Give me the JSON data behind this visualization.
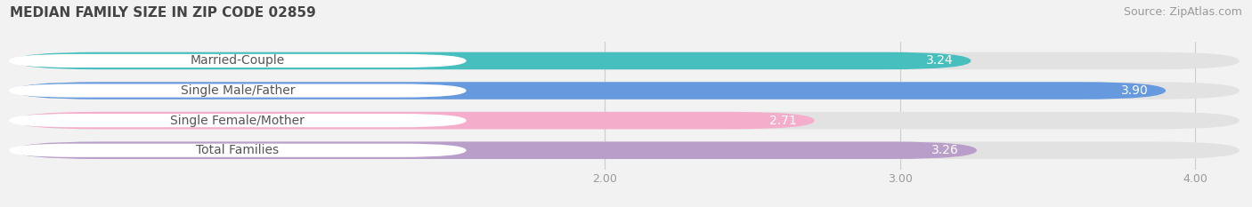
{
  "title": "MEDIAN FAMILY SIZE IN ZIP CODE 02859",
  "source": "Source: ZipAtlas.com",
  "categories": [
    "Married-Couple",
    "Single Male/Father",
    "Single Female/Mother",
    "Total Families"
  ],
  "values": [
    3.24,
    3.9,
    2.71,
    3.26
  ],
  "bar_colors": [
    "#47BFBF",
    "#6699DD",
    "#F4AECB",
    "#B89EC8"
  ],
  "background_color": "#f2f2f2",
  "bar_bg_color": "#e2e2e2",
  "xlim_data": [
    2.0,
    4.0
  ],
  "xticks": [
    2.0,
    3.0,
    4.0
  ],
  "label_color": "#555555",
  "value_color_inside": "#ffffff",
  "value_color_outside": "#666666",
  "title_fontsize": 11,
  "source_fontsize": 9,
  "label_fontsize": 10,
  "value_fontsize": 10,
  "tick_fontsize": 9,
  "bar_height": 0.58
}
